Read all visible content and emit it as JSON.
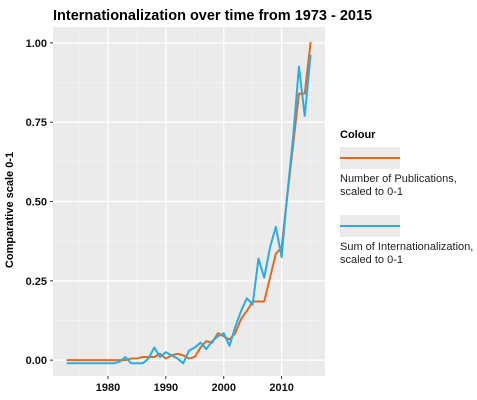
{
  "chart_data": {
    "type": "line",
    "title": "Internationalization over time from 1973 - 2015",
    "xlabel": "",
    "ylabel": "Comparative scale 0-1",
    "xlim": [
      1970.5,
      2017.5
    ],
    "ylim": [
      -0.05,
      1.05
    ],
    "x_ticks": [
      1980,
      1990,
      2000,
      2010
    ],
    "x_tick_labels": [
      "1980",
      "1990",
      "2000",
      "2010"
    ],
    "y_ticks": [
      0,
      0.25,
      0.5,
      0.75,
      1.0
    ],
    "y_tick_labels": [
      "0.00",
      "0.25",
      "0.50",
      "0.75",
      "1.00"
    ],
    "grid": true,
    "legend": {
      "title": "Colour",
      "position": "right",
      "entries": [
        {
          "label_lines": [
            "Number of Publications,",
            "scaled to 0-1"
          ],
          "series": 0
        },
        {
          "label_lines": [
            "Sum of Internationalization,",
            "scaled to 0-1"
          ],
          "series": 1
        }
      ]
    },
    "series": [
      {
        "name": "Number of Publications, scaled to 0-1",
        "color": "#E06B20",
        "x": [
          1973,
          1974,
          1975,
          1976,
          1977,
          1978,
          1979,
          1980,
          1981,
          1982,
          1983,
          1984,
          1985,
          1986,
          1987,
          1988,
          1989,
          1990,
          1991,
          1992,
          1993,
          1994,
          1995,
          1996,
          1997,
          1998,
          1999,
          2000,
          2001,
          2002,
          2003,
          2004,
          2005,
          2006,
          2007,
          2008,
          2009,
          2010,
          2011,
          2012,
          2013,
          2014,
          2015
        ],
        "y": [
          0,
          0,
          0,
          0,
          0,
          0,
          0,
          0,
          0,
          0,
          0,
          0.005,
          0.005,
          0.01,
          0.01,
          0.01,
          0.02,
          0.005,
          0.015,
          0.02,
          0.015,
          0.005,
          0.01,
          0.04,
          0.06,
          0.055,
          0.085,
          0.075,
          0.065,
          0.085,
          0.13,
          0.155,
          0.185,
          0.185,
          0.185,
          0.26,
          0.335,
          0.355,
          0.52,
          0.68,
          0.84,
          0.84,
          1.0
        ]
      },
      {
        "name": "Sum of Internationalization, scaled to 0-1",
        "color": "#2AACE2",
        "x": [
          1973,
          1974,
          1975,
          1976,
          1977,
          1978,
          1979,
          1980,
          1981,
          1982,
          1983,
          1984,
          1985,
          1986,
          1987,
          1988,
          1989,
          1990,
          1991,
          1992,
          1993,
          1994,
          1995,
          1996,
          1997,
          1998,
          1999,
          2000,
          2001,
          2002,
          2003,
          2004,
          2005,
          2006,
          2007,
          2008,
          2009,
          2010,
          2011,
          2012,
          2013,
          2014,
          2015
        ],
        "y": [
          -0.01,
          -0.01,
          -0.01,
          -0.01,
          -0.01,
          -0.01,
          -0.01,
          -0.01,
          -0.01,
          -0.005,
          0.01,
          -0.01,
          -0.01,
          -0.01,
          0.005,
          0.04,
          0.01,
          0.025,
          0.015,
          0.005,
          -0.01,
          0.03,
          0.04,
          0.055,
          0.035,
          0.06,
          0.075,
          0.085,
          0.045,
          0.105,
          0.155,
          0.195,
          0.175,
          0.32,
          0.26,
          0.355,
          0.42,
          0.325,
          0.525,
          0.705,
          0.925,
          0.77,
          0.96
        ]
      }
    ]
  }
}
